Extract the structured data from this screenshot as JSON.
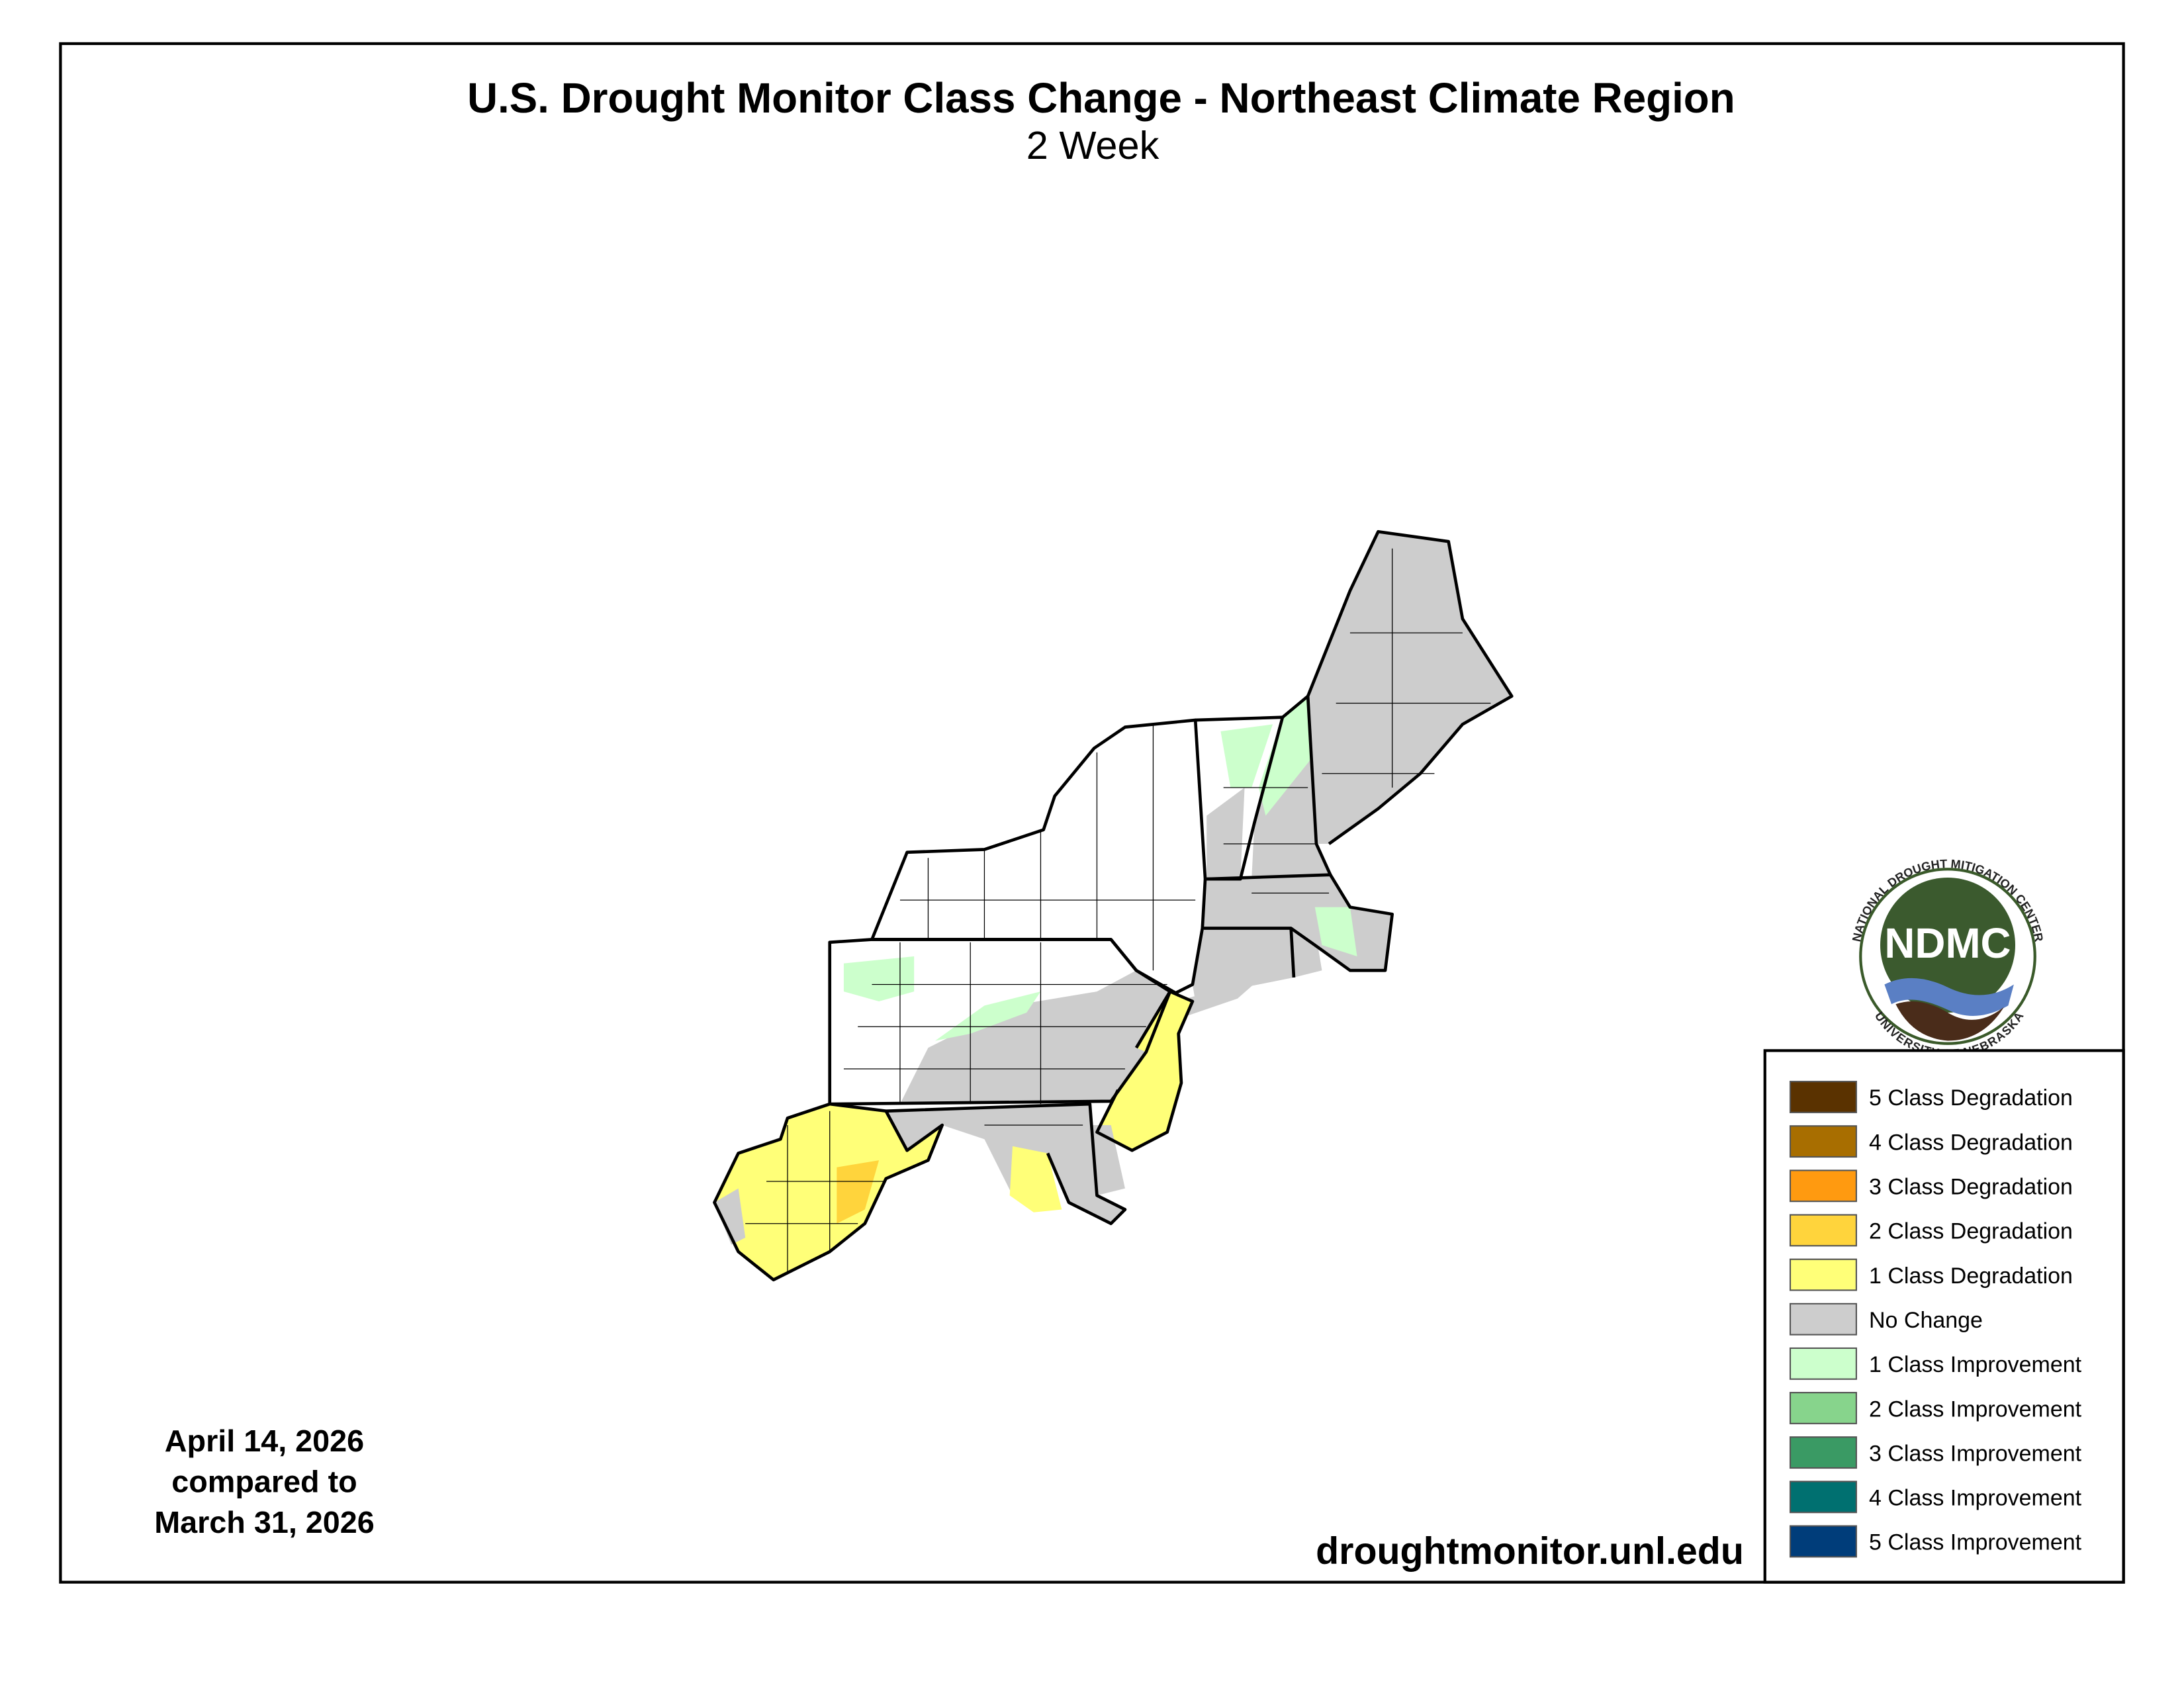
{
  "header": {
    "title": "U.S. Drought Monitor Class Change - Northeast Climate Region",
    "subtitle": "2 Week"
  },
  "date_note": {
    "lines": [
      "April 14, 2026",
      "compared to",
      "March 31, 2026"
    ]
  },
  "source": "droughtmonitor.unl.edu",
  "logo": {
    "acronym": "NDMC",
    "top_text": "NATIONAL DROUGHT MITIGATION CENTER",
    "bottom_text": "UNIVERSITY OF NEBRASKA"
  },
  "legend": {
    "items": [
      {
        "label": "5 Class Degradation",
        "color": "#5a3200"
      },
      {
        "label": "4 Class Degradation",
        "color": "#a86e00"
      },
      {
        "label": "3 Class Degradation",
        "color": "#ff9a10"
      },
      {
        "label": "2 Class Degradation",
        "color": "#ffd43c"
      },
      {
        "label": "1 Class Degradation",
        "color": "#ffff78"
      },
      {
        "label": "No Change",
        "color": "#cdcdcd"
      },
      {
        "label": "1 Class Improvement",
        "color": "#ccffcc"
      },
      {
        "label": "2 Class Improvement",
        "color": "#87d48c"
      },
      {
        "label": "3 Class Improvement",
        "color": "#3a9a64"
      },
      {
        "label": "4 Class Improvement",
        "color": "#007070"
      },
      {
        "label": "5 Class Improvement",
        "color": "#003d7a"
      }
    ]
  }
}
